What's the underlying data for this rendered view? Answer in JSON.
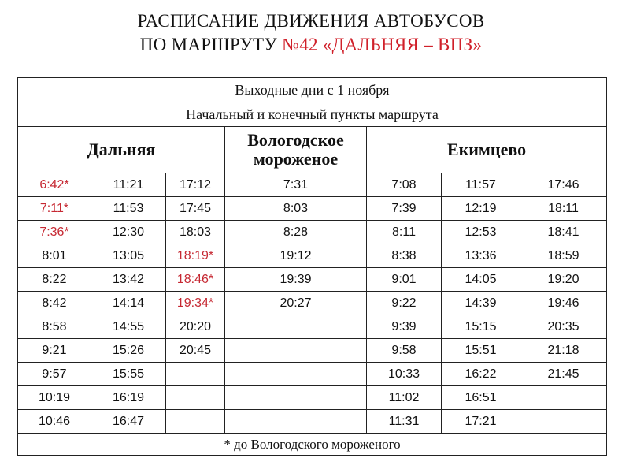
{
  "title": {
    "line1": "РАСПИСАНИЕ ДВИЖЕНИЯ АВТОБУСОВ",
    "line2_prefix": "ПО МАРШРУТУ ",
    "line2_route": "№42 «ДАЛЬНЯЯ – ВПЗ»"
  },
  "schedule": {
    "day_type": "Выходные дни с 1 ноября",
    "points_header": "Начальный и конечный пункты маршрута",
    "stops": [
      "Дальняя",
      "Вологодское мороженое",
      "Екимцево"
    ],
    "highlight_color": "#c62832",
    "rows": [
      [
        {
          "t": "6:42*",
          "red": true
        },
        {
          "t": "11:21"
        },
        {
          "t": "17:12"
        },
        {
          "t": "7:31"
        },
        {
          "t": "7:08"
        },
        {
          "t": "11:57"
        },
        {
          "t": "17:46"
        }
      ],
      [
        {
          "t": "7:11*",
          "red": true
        },
        {
          "t": "11:53"
        },
        {
          "t": "17:45"
        },
        {
          "t": "8:03"
        },
        {
          "t": "7:39"
        },
        {
          "t": "12:19"
        },
        {
          "t": "18:11"
        }
      ],
      [
        {
          "t": "7:36*",
          "red": true
        },
        {
          "t": "12:30"
        },
        {
          "t": "18:03"
        },
        {
          "t": "8:28"
        },
        {
          "t": "8:11"
        },
        {
          "t": "12:53"
        },
        {
          "t": "18:41"
        }
      ],
      [
        {
          "t": "8:01"
        },
        {
          "t": "13:05"
        },
        {
          "t": "18:19*",
          "red": true
        },
        {
          "t": "19:12"
        },
        {
          "t": "8:38"
        },
        {
          "t": "13:36"
        },
        {
          "t": "18:59"
        }
      ],
      [
        {
          "t": "8:22"
        },
        {
          "t": "13:42"
        },
        {
          "t": "18:46*",
          "red": true
        },
        {
          "t": "19:39"
        },
        {
          "t": "9:01"
        },
        {
          "t": "14:05"
        },
        {
          "t": "19:20"
        }
      ],
      [
        {
          "t": "8:42"
        },
        {
          "t": "14:14"
        },
        {
          "t": "19:34*",
          "red": true
        },
        {
          "t": "20:27"
        },
        {
          "t": "9:22"
        },
        {
          "t": "14:39"
        },
        {
          "t": "19:46"
        }
      ],
      [
        {
          "t": "8:58"
        },
        {
          "t": "14:55"
        },
        {
          "t": "20:20"
        },
        {
          "t": ""
        },
        {
          "t": "9:39"
        },
        {
          "t": "15:15"
        },
        {
          "t": "20:35"
        }
      ],
      [
        {
          "t": "9:21"
        },
        {
          "t": "15:26"
        },
        {
          "t": "20:45"
        },
        {
          "t": ""
        },
        {
          "t": "9:58"
        },
        {
          "t": "15:51"
        },
        {
          "t": "21:18"
        }
      ],
      [
        {
          "t": "9:57"
        },
        {
          "t": "15:55"
        },
        {
          "t": ""
        },
        {
          "t": ""
        },
        {
          "t": "10:33"
        },
        {
          "t": "16:22"
        },
        {
          "t": "21:45"
        }
      ],
      [
        {
          "t": "10:19"
        },
        {
          "t": "16:19"
        },
        {
          "t": ""
        },
        {
          "t": ""
        },
        {
          "t": "11:02"
        },
        {
          "t": "16:51"
        },
        {
          "t": ""
        }
      ],
      [
        {
          "t": "10:46"
        },
        {
          "t": "16:47"
        },
        {
          "t": ""
        },
        {
          "t": ""
        },
        {
          "t": "11:31"
        },
        {
          "t": "17:21"
        },
        {
          "t": ""
        }
      ]
    ],
    "footnote": "* до Вологодского мороженого"
  }
}
